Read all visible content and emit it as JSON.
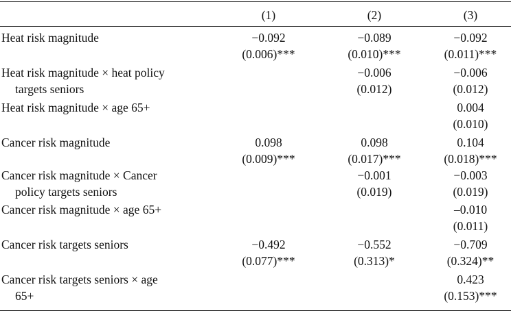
{
  "header": {
    "col1": "(1)",
    "col2": "(2)",
    "col3": "(3)"
  },
  "rows": [
    {
      "label": [
        "Heat risk magnitude"
      ],
      "col1": [
        "−0.092",
        "(0.006)***"
      ],
      "col2": [
        "−0.089",
        "(0.010)***"
      ],
      "col3": [
        "−0.092",
        "(0.011)***"
      ]
    },
    {
      "label": [
        "Heat risk magnitude × heat policy",
        "targets seniors"
      ],
      "col1": [
        "",
        ""
      ],
      "col2": [
        "−0.006",
        "(0.012)"
      ],
      "col3": [
        "−0.006",
        "(0.012)"
      ]
    },
    {
      "label": [
        "Heat risk magnitude × age 65+"
      ],
      "col1": [
        "",
        ""
      ],
      "col2": [
        "",
        ""
      ],
      "col3": [
        "0.004",
        "(0.010)"
      ]
    },
    {
      "label": [
        "Cancer risk magnitude"
      ],
      "col1": [
        "0.098",
        "(0.009)***"
      ],
      "col2": [
        "0.098",
        "(0.017)***"
      ],
      "col3": [
        "0.104",
        "(0.018)***"
      ]
    },
    {
      "label": [
        "Cancer risk magnitude × Cancer",
        "policy targets seniors"
      ],
      "col1": [
        "",
        ""
      ],
      "col2": [
        "−0.001",
        "(0.019)"
      ],
      "col3": [
        "−0.003",
        "(0.019)"
      ]
    },
    {
      "label": [
        "Cancer risk magnitude × age 65+"
      ],
      "col1": [
        "",
        ""
      ],
      "col2": [
        "",
        ""
      ],
      "col3": [
        "–0.010",
        "(0.011)"
      ]
    },
    {
      "label": [
        "Cancer risk targets seniors"
      ],
      "col1": [
        "−0.492",
        "(0.077)***"
      ],
      "col2": [
        "−0.552",
        "(0.313)*"
      ],
      "col3": [
        "−0.709",
        "(0.324)**"
      ]
    },
    {
      "label": [
        "Cancer risk targets seniors × age",
        "65+"
      ],
      "col1": [
        "",
        ""
      ],
      "col2": [
        "",
        ""
      ],
      "col3": [
        "0.423",
        "(0.153)***"
      ]
    }
  ]
}
